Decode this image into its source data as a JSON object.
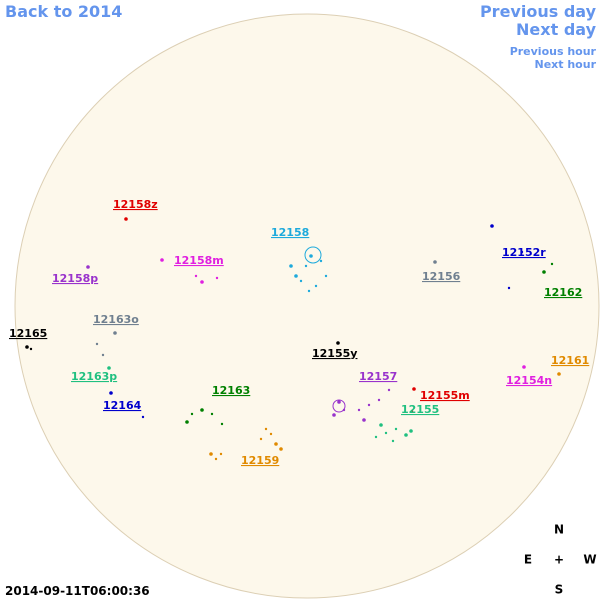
{
  "nav": {
    "back": "Back to 2014",
    "previous_day": "Previous day",
    "next_day": "Next day",
    "previous_hour": "Previous hour",
    "next_hour": "Next hour"
  },
  "regions": [
    {
      "label": "12158z",
      "color": "#e00000"
    },
    {
      "label": "12158",
      "color": "#1eaadc"
    },
    {
      "label": "12152r",
      "color": "#0000cc"
    },
    {
      "label": "12158m",
      "color": "#e020e0"
    },
    {
      "label": "12158p",
      "color": "#9933cc"
    },
    {
      "label": "12156",
      "color": "#708090"
    },
    {
      "label": "12162",
      "color": "#008000"
    },
    {
      "label": "12163o",
      "color": "#708090"
    },
    {
      "label": "12165",
      "color": "#000000"
    },
    {
      "label": "12155y",
      "color": "#000000"
    },
    {
      "label": "12161",
      "color": "#e08a00"
    },
    {
      "label": "12157",
      "color": "#9933cc"
    },
    {
      "label": "12163p",
      "color": "#20c080"
    },
    {
      "label": "12154n",
      "color": "#e020e0"
    },
    {
      "label": "12155m",
      "color": "#e00000"
    },
    {
      "label": "12163",
      "color": "#008000"
    },
    {
      "label": "12164",
      "color": "#0000cc"
    },
    {
      "label": "12155",
      "color": "#20c080"
    },
    {
      "label": "12159",
      "color": "#e08a00"
    }
  ],
  "compass": {
    "north": "N",
    "east": "E",
    "center": "+",
    "west": "W",
    "south": "S"
  },
  "timestamp": "2014-09-11T06:00:36"
}
